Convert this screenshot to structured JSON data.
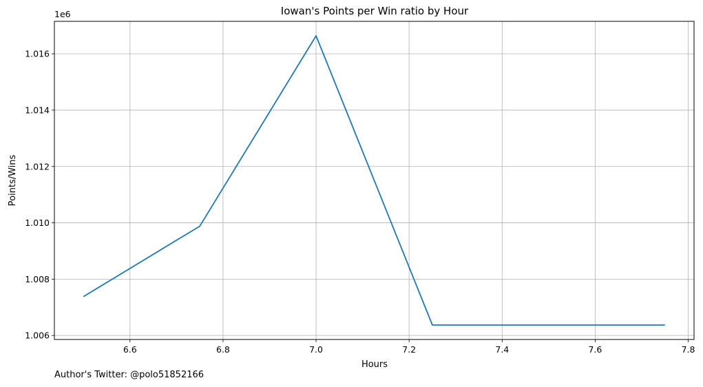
{
  "chart_data": {
    "type": "line",
    "title": "Iowan's Points per Win ratio by Hour",
    "xlabel": "Hours",
    "ylabel": "Points/Wins",
    "offset_label": "1e6",
    "x": [
      6.5,
      6.75,
      7.0,
      7.25,
      7.5,
      7.75
    ],
    "series": [
      {
        "values": [
          1007380,
          1009880,
          1016640,
          1006370,
          1006370,
          1006370
        ]
      }
    ],
    "xlim": [
      6.4375,
      7.8125
    ],
    "ylim": [
      1005857,
      1017153
    ],
    "x_ticks": [
      6.6,
      6.8,
      7.0,
      7.2,
      7.4,
      7.6,
      7.8
    ],
    "x_tick_labels": [
      "6.6",
      "6.8",
      "7.0",
      "7.2",
      "7.4",
      "7.6",
      "7.8"
    ],
    "y_ticks": [
      1006000,
      1008000,
      1010000,
      1012000,
      1014000,
      1016000
    ],
    "y_tick_labels": [
      "1.006",
      "1.008",
      "1.010",
      "1.012",
      "1.014",
      "1.016"
    ],
    "grid": true,
    "line_color": "#1f77b4",
    "grid_color": "#b0b0b0"
  },
  "footer": "Author's Twitter: @polo51852166"
}
